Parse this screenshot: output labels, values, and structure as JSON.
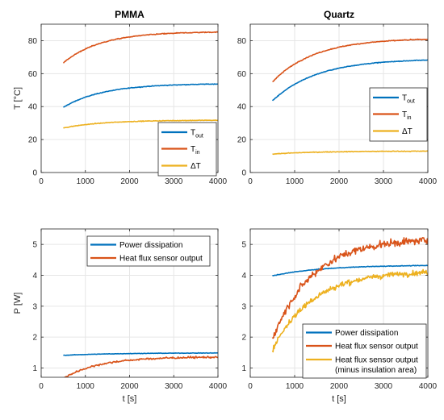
{
  "colors": {
    "blue": "#0072BD",
    "orange": "#D95319",
    "yellow": "#EDB120",
    "grid": "#e6e6e6",
    "axis": "#262626"
  },
  "chart_data": [
    {
      "type": "line",
      "title": "PMMA",
      "xlabel": "",
      "ylabel": "T [°C]",
      "xlim": [
        0,
        4000
      ],
      "ylim": [
        0,
        90
      ],
      "xticks": [
        "0",
        "1000",
        "2000",
        "3000",
        "4000"
      ],
      "yticks": [
        "0",
        "20",
        "40",
        "60",
        "80"
      ],
      "grid": true,
      "legend_position": "bottom-right",
      "series": [
        {
          "name": "T",
          "sub": "out",
          "color": "#0072BD",
          "x_range": [
            500,
            4000
          ],
          "start": 39.5,
          "end": 54,
          "tau": 900,
          "noise": 0.2
        },
        {
          "name": "T",
          "sub": "in",
          "color": "#D95319",
          "x_range": [
            500,
            4000
          ],
          "start": 66.5,
          "end": 85.5,
          "tau": 850,
          "noise": 0.25
        },
        {
          "name": "ΔT",
          "sub": "",
          "color": "#EDB120",
          "x_range": [
            500,
            4000
          ],
          "start": 27,
          "end": 31.8,
          "tau": 900,
          "noise": 0.2
        }
      ]
    },
    {
      "type": "line",
      "title": "Quartz",
      "xlabel": "",
      "ylabel": "",
      "xlim": [
        0,
        4000
      ],
      "ylim": [
        0,
        90
      ],
      "xticks": [
        "0",
        "1000",
        "2000",
        "3000",
        "4000"
      ],
      "yticks": [
        "0",
        "20",
        "40",
        "60",
        "80"
      ],
      "grid": true,
      "legend_position": "center-right",
      "series": [
        {
          "name": "T",
          "sub": "out",
          "color": "#0072BD",
          "x_range": [
            500,
            4000
          ],
          "start": 43.5,
          "end": 69,
          "tau": 1000,
          "noise": 0.2
        },
        {
          "name": "T",
          "sub": "in",
          "color": "#D95319",
          "x_range": [
            500,
            4000
          ],
          "start": 55,
          "end": 81.5,
          "tau": 950,
          "noise": 0.25
        },
        {
          "name": "ΔT",
          "sub": "",
          "color": "#EDB120",
          "x_range": [
            500,
            4000
          ],
          "start": 11.2,
          "end": 13,
          "tau": 1000,
          "noise": 0.2
        }
      ]
    },
    {
      "type": "line",
      "title": "",
      "xlabel": "t [s]",
      "ylabel": "P [W]",
      "xlim": [
        0,
        4000
      ],
      "ylim": [
        0.7,
        5.5
      ],
      "xticks": [
        "0",
        "1000",
        "2000",
        "3000",
        "4000"
      ],
      "yticks": [
        "1",
        "2",
        "3",
        "4",
        "5"
      ],
      "grid": true,
      "legend_position": "top-center",
      "series": [
        {
          "name": "Power dissipation",
          "color": "#0072BD",
          "x_range": [
            500,
            4000
          ],
          "start": 1.41,
          "end": 1.49,
          "tau": 1200,
          "noise": 0.008
        },
        {
          "name": "Heat flux sensor output",
          "color": "#D95319",
          "x_range": [
            500,
            4000
          ],
          "start": 0.66,
          "end": 1.36,
          "tau": 800,
          "noise": 0.03
        }
      ]
    },
    {
      "type": "line",
      "title": "",
      "xlabel": "t [s]",
      "ylabel": "",
      "xlim": [
        0,
        4000
      ],
      "ylim": [
        0.7,
        5.5
      ],
      "xticks": [
        "0",
        "1000",
        "2000",
        "3000",
        "4000"
      ],
      "yticks": [
        "1",
        "2",
        "3",
        "4",
        "5"
      ],
      "grid": true,
      "legend_position": "bottom-right",
      "series": [
        {
          "name": "Power dissipation",
          "color": "#0072BD",
          "x_range": [
            500,
            4000
          ],
          "start": 3.98,
          "end": 4.33,
          "tau": 1100,
          "noise": 0.01
        },
        {
          "name": "Heat flux sensor output",
          "color": "#D95319",
          "x_range": [
            500,
            4000
          ],
          "start": 1.95,
          "end": 5.2,
          "tau": 900,
          "noise": 0.12
        },
        {
          "name": "Heat flux sensor output",
          "name2": "(minus insulation area)",
          "color": "#EDB120",
          "x_range": [
            500,
            4000
          ],
          "start": 1.6,
          "end": 4.15,
          "tau": 900,
          "noise": 0.09
        }
      ]
    }
  ]
}
